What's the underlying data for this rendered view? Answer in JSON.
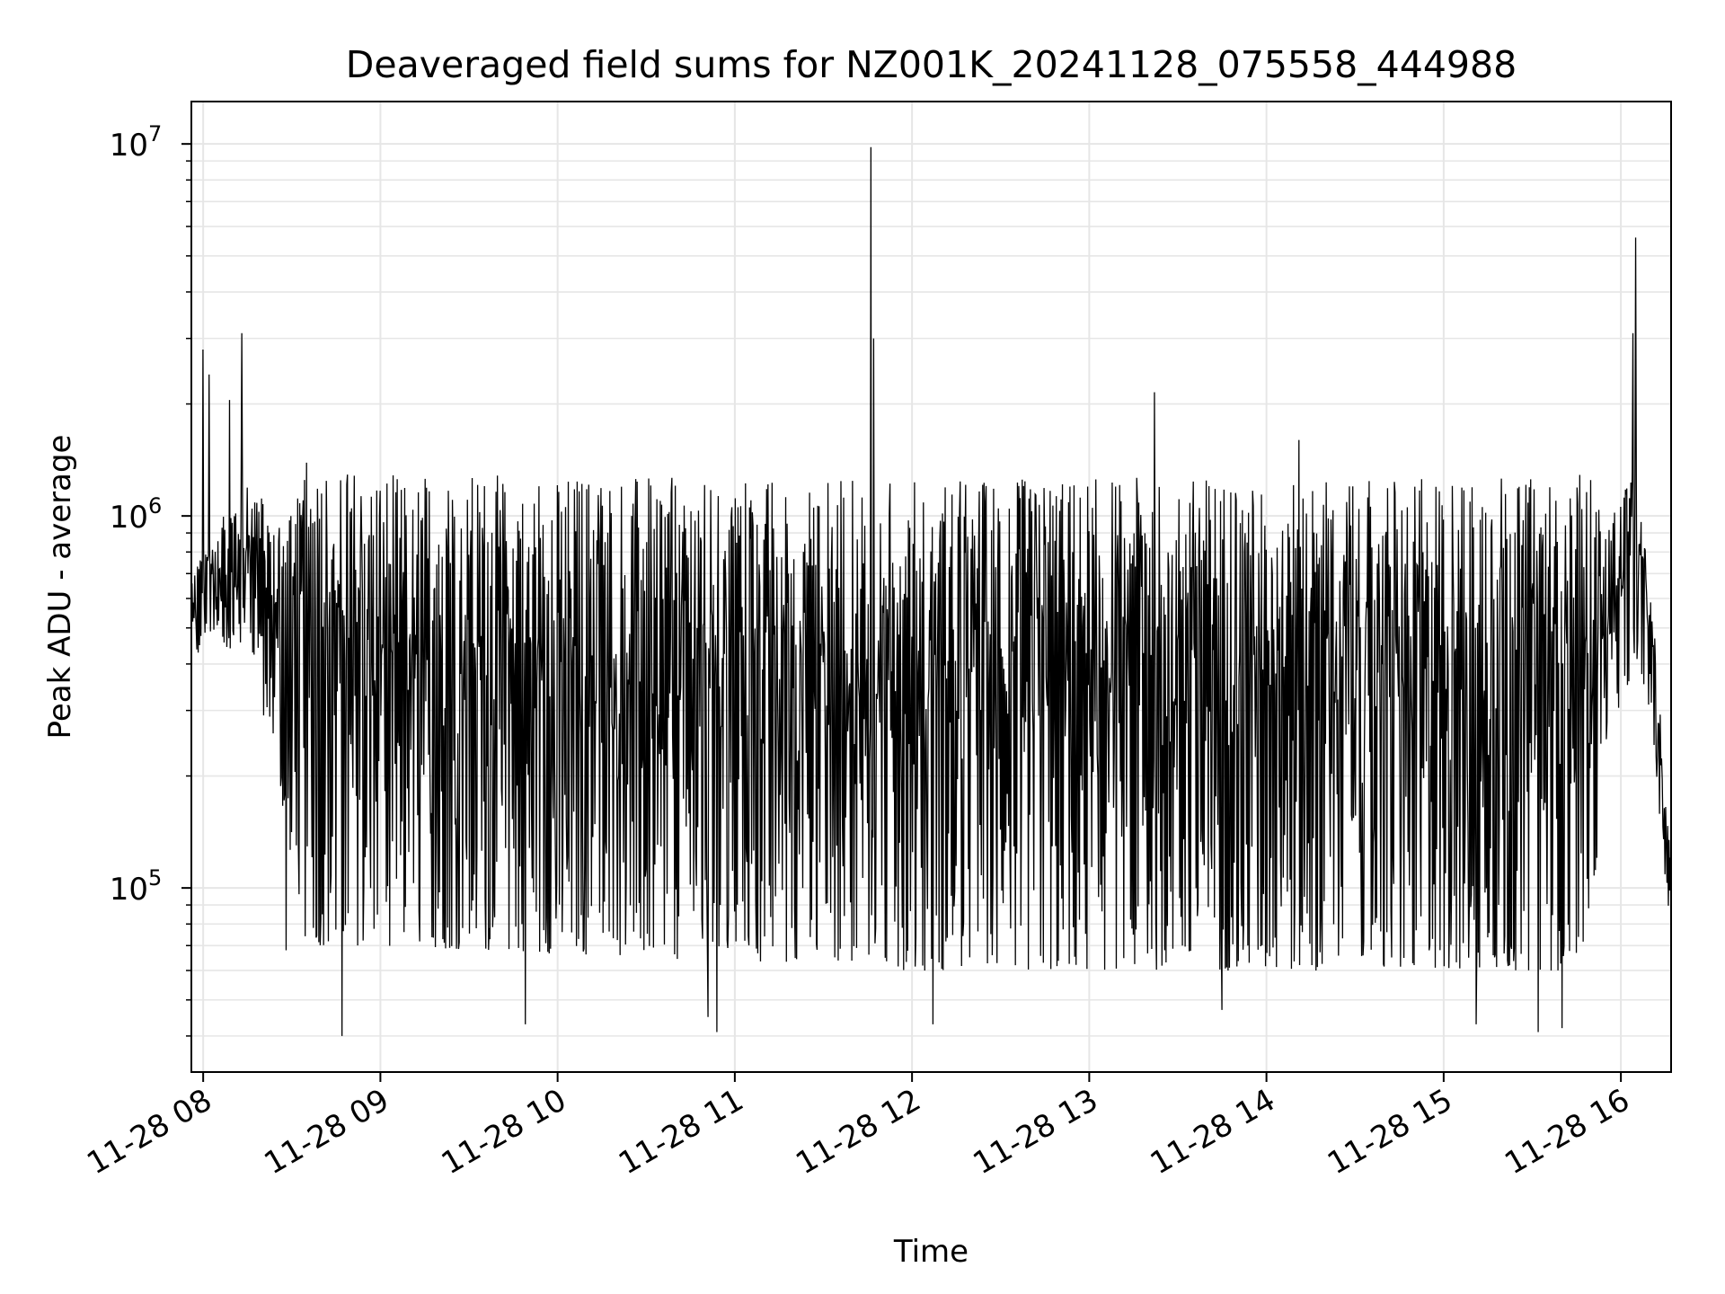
{
  "chart_data": {
    "type": "line",
    "title": "Deaveraged field sums for NZ001K_20241128_075558_444988",
    "xlabel": "Time",
    "ylabel": "Peak ADU - average",
    "yscale": "log",
    "ylim": [
      32000,
      13000000
    ],
    "xlim": [
      "2024-11-28 07:56",
      "2024-11-28 16:17"
    ],
    "grid": true,
    "grid_minor": true,
    "line_color": "#000000",
    "grid_color": "#e6e6e6",
    "x_ticks": [
      "11-28 08",
      "11-28 09",
      "11-28 10",
      "11-28 11",
      "11-28 12",
      "11-28 13",
      "11-28 14",
      "11-28 15",
      "11-28 16"
    ],
    "y_ticks": [
      {
        "value": 100000,
        "base": "10",
        "exp": "5"
      },
      {
        "value": 1000000,
        "base": "10",
        "exp": "6"
      },
      {
        "value": 10000000,
        "base": "10",
        "exp": "7"
      }
    ],
    "series": [
      {
        "x_start": "2024-11-28 07:56",
        "x_end": "2024-11-28 16:17",
        "points_per_hour": 260,
        "envelope": [
          {
            "t": "2024-11-28 07:56",
            "low": 420000,
            "high": 700000
          },
          {
            "t": "2024-11-28 08:15",
            "low": 450000,
            "high": 1300000
          },
          {
            "t": "2024-11-28 08:25",
            "low": 200000,
            "high": 1000000
          },
          {
            "t": "2024-11-28 08:35",
            "low": 70000,
            "high": 1400000
          },
          {
            "t": "2024-11-28 09:00",
            "low": 70000,
            "high": 1300000
          },
          {
            "t": "2024-11-28 12:00",
            "low": 60000,
            "high": 1250000
          },
          {
            "t": "2024-11-28 15:50",
            "low": 60000,
            "high": 1300000
          },
          {
            "t": "2024-11-28 15:55",
            "low": 250000,
            "high": 900000
          },
          {
            "t": "2024-11-28 16:05",
            "low": 400000,
            "high": 1400000
          },
          {
            "t": "2024-11-28 16:10",
            "low": 300000,
            "high": 700000
          },
          {
            "t": "2024-11-28 16:17",
            "low": 70000,
            "high": 120000
          }
        ],
        "spikes": [
          {
            "t": "2024-11-28 08:00",
            "y": 2800000
          },
          {
            "t": "2024-11-28 08:02",
            "y": 2400000
          },
          {
            "t": "2024-11-28 08:09",
            "y": 2050000
          },
          {
            "t": "2024-11-28 08:13",
            "y": 3100000
          },
          {
            "t": "2024-11-28 08:28",
            "y": 68000
          },
          {
            "t": "2024-11-28 08:47",
            "y": 40000
          },
          {
            "t": "2024-11-28 09:49",
            "y": 43000
          },
          {
            "t": "2024-11-28 10:51",
            "y": 45000
          },
          {
            "t": "2024-11-28 10:54",
            "y": 41000
          },
          {
            "t": "2024-11-28 11:46",
            "y": 9800000
          },
          {
            "t": "2024-11-28 11:47",
            "y": 3000000
          },
          {
            "t": "2024-11-28 12:07",
            "y": 43000
          },
          {
            "t": "2024-11-28 13:22",
            "y": 2150000
          },
          {
            "t": "2024-11-28 13:45",
            "y": 47000
          },
          {
            "t": "2024-11-28 14:11",
            "y": 1600000
          },
          {
            "t": "2024-11-28 15:11",
            "y": 43000
          },
          {
            "t": "2024-11-28 15:32",
            "y": 41000
          },
          {
            "t": "2024-11-28 15:40",
            "y": 42000
          },
          {
            "t": "2024-11-28 16:04",
            "y": 6400000
          },
          {
            "t": "2024-11-28 16:05",
            "y": 5600000
          },
          {
            "t": "2024-11-28 16:04",
            "y": 3100000
          }
        ]
      }
    ]
  }
}
